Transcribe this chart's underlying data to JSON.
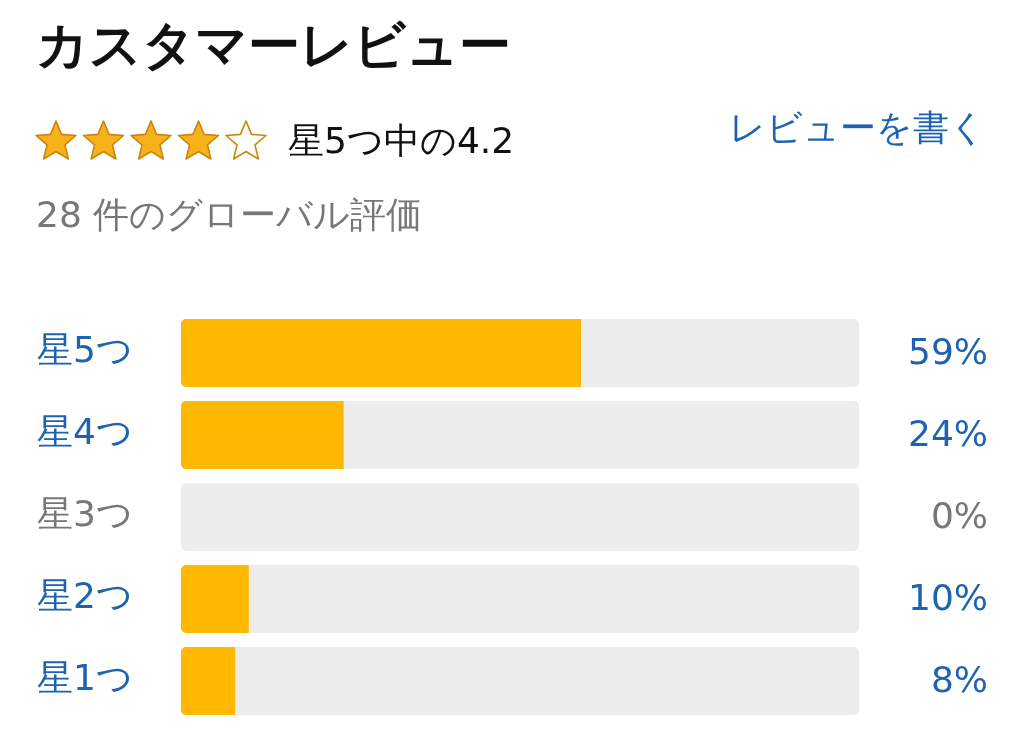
{
  "chart_data": {
    "type": "bar",
    "orientation": "horizontal",
    "stacked": true,
    "title": "カスタマーレビュー",
    "subtitle": "28 件のグローバル評価",
    "annotations": [
      "星5つ中の4.2",
      "レビューを書く"
    ],
    "categories": [
      "星5つ",
      "星4つ",
      "星3つ",
      "星2つ",
      "星1つ"
    ],
    "series": [
      {
        "color": "#ffb800",
        "values": [
          59,
          24,
          0,
          10,
          8
        ],
        "value_labels": [
          "59%",
          "24%",
          "0%",
          "10%",
          "8%"
        ]
      },
      {
        "color": "#ececec",
        "values": [
          41,
          76,
          100,
          90,
          92
        ]
      }
    ],
    "xlim": [
      0,
      100
    ],
    "tick_labels": "y"
  }
}
